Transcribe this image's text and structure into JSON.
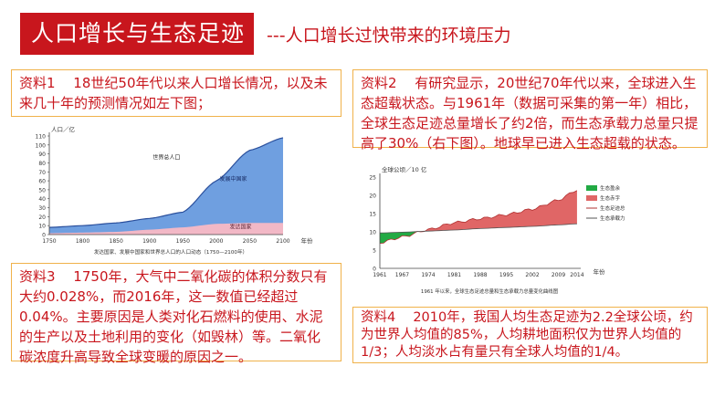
{
  "header": {
    "title": "人口增长与生态足迹",
    "subtitle": "---人口增长过快带来的环境压力"
  },
  "materials": [
    {
      "text": "资料1　 18世纪50年代以来人口增长情况，以及未来几十年的预测情况如左下图；"
    },
    {
      "text": "资料2　 有研究显示，20世纪70年代以来，全球进入生态超载状态。与1961年（数据可采集的第一年）相比，全球生态足迹总量增长了约2倍，而生态承载力总量只提高了30%（右下图）。地球早已进入生态超载的状态。"
    },
    {
      "text": "资料3　 1750年，大气中二氧化碳的体积分数只有大约0.028%，而2016年，这一数值已经超过0.04%。主要原因是人类对化石燃料的使用、水泥的生产以及土地利用的变化（如毁林）等。二氧化碳浓度升高导致全球变暖的原因之一。"
    },
    {
      "text": "资料4　 2010年，我国人均生态足迹为2.2全球公顷，约为世界人均值的85%，人均耕地面积仅为世界人均值的1/3；人均淡水占有量只有全球人均值的1/4。"
    }
  ],
  "chart_data": [
    {
      "type": "area",
      "title": "",
      "ylabel": "人口／亿",
      "xlabel": "年份",
      "caption": "发达国家、发展中国家和世界总人口的人口动态（1750—2100年）",
      "x": [
        1750,
        1800,
        1850,
        1900,
        1950,
        2000,
        2050,
        2100
      ],
      "xlim": [
        1750,
        2100
      ],
      "ylim": [
        0,
        110
      ],
      "yticks": [
        0,
        10,
        20,
        30,
        40,
        50,
        60,
        70,
        80,
        90,
        100,
        110
      ],
      "series": [
        {
          "name": "发达国家",
          "values": [
            1.5,
            2.2,
            3.0,
            5.5,
            8.0,
            12.0,
            13.0,
            13.0
          ],
          "color": "#f2b8c6"
        },
        {
          "name": "发展中国家",
          "values": [
            6.5,
            7.8,
            10.0,
            12.5,
            17.0,
            48.0,
            81.0,
            95.0
          ],
          "color": "#6f9fe0"
        },
        {
          "name": "世界总人口",
          "values": [
            8.0,
            10.0,
            13.0,
            18.0,
            25.0,
            60.0,
            94.0,
            108.0
          ]
        }
      ]
    },
    {
      "type": "area",
      "title": "",
      "ylabel": "全球公顷／10 亿",
      "xlabel": "年份",
      "caption": "1961 年以来，全球生态足迹总量和生态承载力总量变化曲线图",
      "x": [
        1961,
        1967,
        1974,
        1981,
        1988,
        1995,
        2002,
        2009,
        2014
      ],
      "xlim": [
        1961,
        2015
      ],
      "ylim": [
        0,
        25
      ],
      "yticks": [
        0,
        5,
        10,
        15,
        20,
        25
      ],
      "series": [
        {
          "name": "生态盈余",
          "color": "#22aa44"
        },
        {
          "name": "生态赤字",
          "color": "#e06666"
        },
        {
          "name": "生态足迹总量",
          "values": [
            7.0,
            8.6,
            10.6,
            12.5,
            13.6,
            14.7,
            16.2,
            18.7,
            21.5
          ],
          "color": "#b03030"
        },
        {
          "name": "生态承载力总量",
          "values": [
            9.7,
            9.9,
            10.2,
            10.5,
            10.9,
            11.2,
            11.5,
            11.9,
            12.2
          ],
          "color": "#555555"
        }
      ]
    }
  ]
}
